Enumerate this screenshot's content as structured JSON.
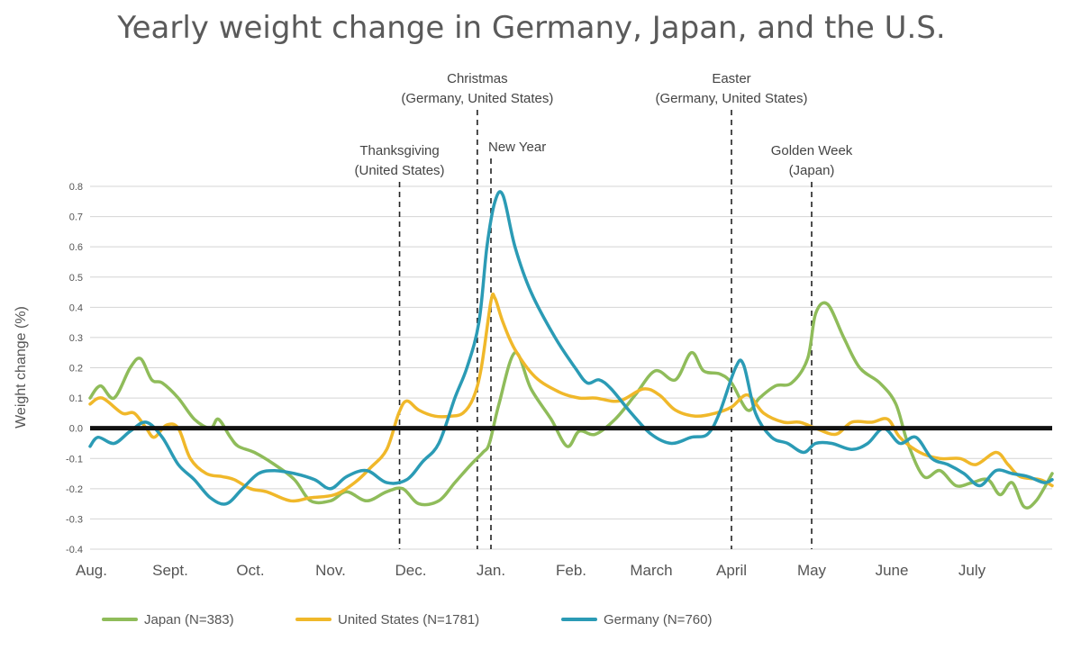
{
  "chart_data": {
    "type": "line",
    "title": "Yearly weight change in Germany, Japan, and the U.S.",
    "ylabel": "Weight change (%)",
    "xlabel": "",
    "ylim": [
      -0.4,
      0.8
    ],
    "yticks": [
      0.8,
      0.7,
      0.6,
      0.5,
      0.4,
      0.3,
      0.2,
      0.1,
      0.0,
      -0.1,
      -0.2,
      -0.3,
      -0.4
    ],
    "ytick_labels": [
      "0.8",
      "0.7",
      "0.6",
      "0.5",
      "0.4",
      "0.3",
      "0.2",
      "0.1",
      "0.0",
      "-0.1",
      "-0.2",
      "-0.3",
      "-0.4"
    ],
    "months": [
      "Aug.",
      "Sept.",
      "Oct.",
      "Nov.",
      "Dec.",
      "Jan.",
      "Feb.",
      "March",
      "April",
      "May",
      "June",
      "July"
    ],
    "grid": true,
    "legend_position": "bottom",
    "events": [
      {
        "month_pos": 3.86,
        "label_lines": [
          "Thanksgiving",
          "(United States)"
        ]
      },
      {
        "month_pos": 4.83,
        "label_lines": [
          "Christmas",
          "(Germany, United States)"
        ]
      },
      {
        "month_pos": 5.0,
        "label_lines": [
          "New Year"
        ]
      },
      {
        "month_pos": 8.0,
        "label_lines": [
          "Easter",
          "(Germany, United States)"
        ]
      },
      {
        "month_pos": 9.0,
        "label_lines": [
          "Golden Week",
          "(Japan)"
        ]
      }
    ],
    "series": [
      {
        "name": "Japan (N=383)",
        "color": "#8fbc5a",
        "x": [
          0,
          0.13,
          0.3,
          0.5,
          0.63,
          0.77,
          0.9,
          1.1,
          1.3,
          1.5,
          1.6,
          1.75,
          1.85,
          2.05,
          2.3,
          2.55,
          2.75,
          3.0,
          3.2,
          3.45,
          3.7,
          3.9,
          4.1,
          4.35,
          4.55,
          4.75,
          4.9,
          4.98,
          5.1,
          5.3,
          5.5,
          5.75,
          5.95,
          6.1,
          6.3,
          6.55,
          6.8,
          7.05,
          7.3,
          7.5,
          7.65,
          7.85,
          8.0,
          8.2,
          8.35,
          8.55,
          8.75,
          8.95,
          9.05,
          9.2,
          9.4,
          9.6,
          9.85,
          10.05,
          10.2,
          10.4,
          10.6,
          10.8,
          11.0,
          11.2,
          11.35,
          11.5,
          11.65,
          11.8,
          12.0
        ],
        "y": [
          0.1,
          0.14,
          0.1,
          0.2,
          0.23,
          0.16,
          0.15,
          0.1,
          0.03,
          0.0,
          0.03,
          -0.03,
          -0.06,
          -0.08,
          -0.12,
          -0.17,
          -0.24,
          -0.24,
          -0.21,
          -0.24,
          -0.21,
          -0.2,
          -0.25,
          -0.24,
          -0.18,
          -0.12,
          -0.08,
          -0.05,
          0.08,
          0.25,
          0.13,
          0.03,
          -0.06,
          -0.01,
          -0.02,
          0.03,
          0.11,
          0.19,
          0.16,
          0.25,
          0.19,
          0.18,
          0.15,
          0.06,
          0.1,
          0.14,
          0.15,
          0.23,
          0.38,
          0.41,
          0.3,
          0.2,
          0.15,
          0.08,
          -0.05,
          -0.16,
          -0.14,
          -0.19,
          -0.18,
          -0.17,
          -0.22,
          -0.18,
          -0.26,
          -0.24,
          -0.15
        ]
      },
      {
        "name": "United States (N=1781)",
        "color": "#f0b82a",
        "x": [
          0,
          0.15,
          0.4,
          0.55,
          0.7,
          0.8,
          0.95,
          1.1,
          1.25,
          1.45,
          1.65,
          1.8,
          2.0,
          2.2,
          2.5,
          2.75,
          3.05,
          3.3,
          3.5,
          3.7,
          3.85,
          3.95,
          4.1,
          4.3,
          4.5,
          4.65,
          4.78,
          4.88,
          5.0,
          5.05,
          5.15,
          5.3,
          5.55,
          5.85,
          6.1,
          6.3,
          6.6,
          6.9,
          7.1,
          7.3,
          7.55,
          7.8,
          8.0,
          8.2,
          8.4,
          8.65,
          8.85,
          9.05,
          9.3,
          9.5,
          9.75,
          9.95,
          10.1,
          10.35,
          10.6,
          10.85,
          11.05,
          11.3,
          11.45,
          11.6,
          11.85,
          12.0
        ],
        "y": [
          0.08,
          0.1,
          0.05,
          0.05,
          0.0,
          -0.03,
          0.01,
          0.0,
          -0.1,
          -0.15,
          -0.16,
          -0.17,
          -0.2,
          -0.21,
          -0.24,
          -0.23,
          -0.22,
          -0.18,
          -0.13,
          -0.07,
          0.05,
          0.09,
          0.06,
          0.04,
          0.04,
          0.05,
          0.1,
          0.2,
          0.42,
          0.43,
          0.35,
          0.26,
          0.17,
          0.12,
          0.1,
          0.1,
          0.09,
          0.13,
          0.11,
          0.06,
          0.04,
          0.05,
          0.07,
          0.11,
          0.05,
          0.02,
          0.02,
          0.0,
          -0.02,
          0.02,
          0.02,
          0.03,
          -0.03,
          -0.08,
          -0.1,
          -0.1,
          -0.12,
          -0.08,
          -0.12,
          -0.16,
          -0.17,
          -0.19
        ]
      },
      {
        "name": "Germany (N=760)",
        "color": "#2b9bb5",
        "x": [
          0,
          0.1,
          0.3,
          0.5,
          0.7,
          0.9,
          1.1,
          1.3,
          1.5,
          1.7,
          1.9,
          2.1,
          2.3,
          2.55,
          2.8,
          3.0,
          3.2,
          3.45,
          3.7,
          3.95,
          4.15,
          4.35,
          4.55,
          4.7,
          4.85,
          4.95,
          5.05,
          5.15,
          5.3,
          5.5,
          5.8,
          6.05,
          6.2,
          6.35,
          6.5,
          6.75,
          7.0,
          7.25,
          7.5,
          7.7,
          7.85,
          8.05,
          8.15,
          8.3,
          8.5,
          8.7,
          8.9,
          9.05,
          9.25,
          9.5,
          9.7,
          9.9,
          10.1,
          10.3,
          10.5,
          10.7,
          10.9,
          11.1,
          11.3,
          11.5,
          11.7,
          11.9,
          12.0
        ],
        "y": [
          -0.06,
          -0.03,
          -0.05,
          -0.01,
          0.02,
          -0.03,
          -0.12,
          -0.17,
          -0.23,
          -0.25,
          -0.2,
          -0.15,
          -0.14,
          -0.15,
          -0.17,
          -0.2,
          -0.16,
          -0.14,
          -0.18,
          -0.17,
          -0.11,
          -0.05,
          0.1,
          0.2,
          0.35,
          0.6,
          0.75,
          0.77,
          0.6,
          0.45,
          0.3,
          0.2,
          0.15,
          0.16,
          0.13,
          0.05,
          -0.02,
          -0.05,
          -0.03,
          -0.02,
          0.05,
          0.2,
          0.21,
          0.05,
          -0.03,
          -0.05,
          -0.08,
          -0.05,
          -0.05,
          -0.07,
          -0.05,
          0.0,
          -0.05,
          -0.03,
          -0.1,
          -0.12,
          -0.15,
          -0.19,
          -0.14,
          -0.15,
          -0.16,
          -0.18,
          -0.17
        ]
      }
    ]
  }
}
